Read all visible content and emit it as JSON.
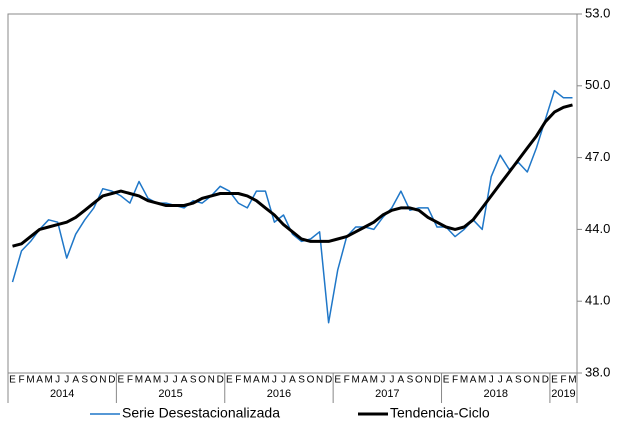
{
  "chart_data": {
    "type": "line",
    "categories": [
      "E",
      "F",
      "M",
      "A",
      "M",
      "J",
      "J",
      "A",
      "S",
      "O",
      "N",
      "D",
      "E",
      "F",
      "M",
      "A",
      "M",
      "J",
      "J",
      "A",
      "S",
      "O",
      "N",
      "D",
      "E",
      "F",
      "M",
      "A",
      "M",
      "J",
      "J",
      "A",
      "S",
      "O",
      "N",
      "D",
      "E",
      "F",
      "M",
      "A",
      "M",
      "J",
      "J",
      "A",
      "S",
      "O",
      "N",
      "D",
      "E",
      "F",
      "M",
      "A",
      "M",
      "J",
      "J",
      "A",
      "S",
      "O",
      "N",
      "D",
      "E",
      "F",
      "M"
    ],
    "years": [
      "2014",
      "2015",
      "2016",
      "2017",
      "2018",
      "2019"
    ],
    "series": [
      {
        "name": "Serie Desestacionalizada",
        "color": "#1f77c8",
        "width": 1.5,
        "values": [
          41.8,
          43.1,
          43.5,
          44.0,
          44.4,
          44.3,
          42.8,
          43.8,
          44.4,
          44.9,
          45.7,
          45.6,
          45.4,
          45.1,
          46.0,
          45.3,
          45.1,
          45.1,
          45.0,
          44.9,
          45.2,
          45.1,
          45.4,
          45.8,
          45.6,
          45.1,
          44.9,
          45.6,
          45.6,
          44.3,
          44.6,
          43.8,
          43.5,
          43.6,
          43.9,
          40.1,
          42.3,
          43.7,
          44.1,
          44.1,
          44.0,
          44.5,
          44.9,
          45.6,
          44.8,
          44.9,
          44.9,
          44.1,
          44.1,
          43.7,
          44.0,
          44.4,
          44.0,
          46.2,
          47.1,
          46.5,
          46.8,
          46.4,
          47.4,
          48.6,
          49.8,
          49.5,
          49.5
        ]
      },
      {
        "name": "Tendencia-Ciclo",
        "color": "#000000",
        "width": 3,
        "values": [
          43.3,
          43.4,
          43.7,
          44.0,
          44.1,
          44.2,
          44.3,
          44.5,
          44.8,
          45.1,
          45.4,
          45.5,
          45.6,
          45.5,
          45.4,
          45.2,
          45.1,
          45.0,
          45.0,
          45.0,
          45.1,
          45.3,
          45.4,
          45.5,
          45.5,
          45.5,
          45.4,
          45.2,
          44.9,
          44.6,
          44.2,
          43.9,
          43.6,
          43.5,
          43.5,
          43.5,
          43.6,
          43.7,
          43.9,
          44.1,
          44.3,
          44.6,
          44.8,
          44.9,
          44.9,
          44.8,
          44.5,
          44.3,
          44.1,
          44.0,
          44.1,
          44.4,
          44.9,
          45.4,
          45.9,
          46.4,
          46.9,
          47.4,
          47.9,
          48.5,
          48.9,
          49.1,
          49.2
        ]
      }
    ],
    "ylim": [
      38,
      53
    ],
    "yticks": [
      {
        "value": 38,
        "label": "38.0"
      },
      {
        "value": 41,
        "label": "41.0"
      },
      {
        "value": 44,
        "label": "44.0"
      },
      {
        "value": 47,
        "label": "47.0"
      },
      {
        "value": 50,
        "label": "50.0"
      },
      {
        "value": 53,
        "label": "53.0"
      }
    ],
    "grid": false
  }
}
